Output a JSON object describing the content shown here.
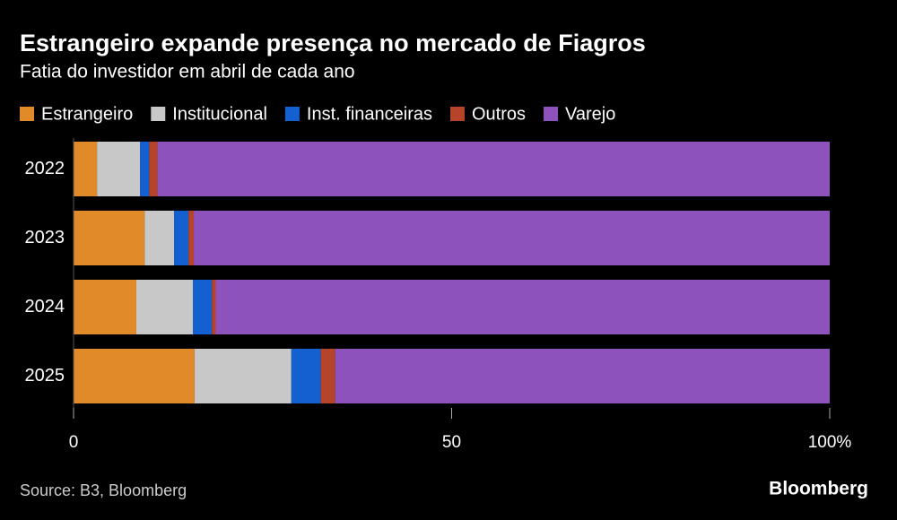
{
  "chart_data": {
    "type": "stacked-barh",
    "title": "Estrangeiro expande presença no mercado de Fiagros",
    "subtitle": "Fatia do investidor em abril de cada ano",
    "categories": [
      "2022",
      "2023",
      "2024",
      "2025"
    ],
    "series": [
      {
        "name": "Estrangeiro",
        "color": "#e08a2a",
        "values": [
          3.1,
          9.4,
          8.3,
          16.0
        ]
      },
      {
        "name": "Institucional",
        "color": "#c8c8c8",
        "values": [
          5.7,
          3.9,
          7.5,
          12.8
        ]
      },
      {
        "name": "Inst. financeiras",
        "color": "#1560d0",
        "values": [
          1.2,
          1.9,
          2.5,
          3.9
        ]
      },
      {
        "name": "Outros",
        "color": "#b5442a",
        "values": [
          1.1,
          0.7,
          0.5,
          1.9
        ]
      },
      {
        "name": "Varejo",
        "color": "#8e52bc",
        "values": [
          88.9,
          84.1,
          81.2,
          65.4
        ]
      }
    ],
    "xlim": [
      0,
      100
    ],
    "xticks": [
      0,
      50,
      {
        "value": 100,
        "label": "100%"
      }
    ],
    "source": "Source: B3, Bloomberg",
    "brand": "Bloomberg"
  }
}
